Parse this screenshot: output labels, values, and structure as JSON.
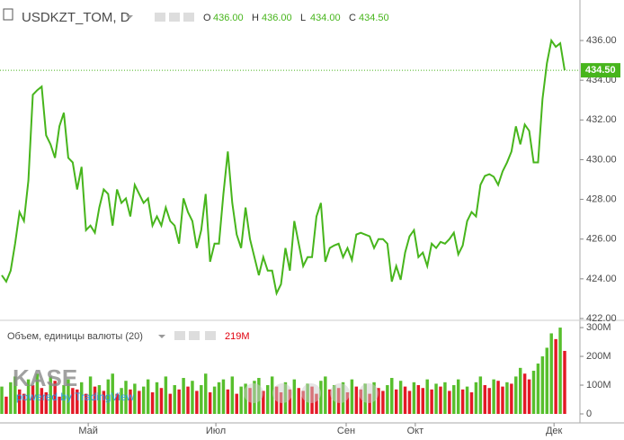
{
  "chart_data": [
    {
      "type": "line",
      "title": "USDKZT_TOM, D",
      "ohlc": [
        {
          "name": "O",
          "value": 436,
          "label": "436.00"
        },
        {
          "name": "H",
          "value": 436,
          "label": "436.00"
        },
        {
          "name": "L",
          "value": 434,
          "label": "434.00"
        },
        {
          "name": "C",
          "value": 434.5,
          "label": "434.50"
        }
      ],
      "series": [
        {
          "color": "#47b51c",
          "values": [
            424.18,
            423.86,
            424.41,
            425.77,
            427.36,
            426.91,
            428.95,
            433.27,
            433.5,
            433.68,
            431.23,
            430.77,
            430.09,
            431.68,
            432.36,
            430.09,
            429.86,
            428.5,
            429.64,
            426.45,
            426.68,
            426.32,
            427.59,
            428.5,
            428.27,
            426.68,
            428.5,
            427.82,
            428.05,
            427.14,
            428.73,
            428.27,
            427.82,
            428.05,
            426.68,
            427.14,
            426.68,
            427.59,
            426.91,
            426.68,
            425.77,
            428.05,
            427.36,
            426.91,
            425.55,
            426.45,
            428.27,
            424.86,
            425.77,
            425.77,
            428.27,
            430.41,
            427.82,
            426.23,
            425.55,
            427.59,
            426,
            425.09,
            424.18,
            425.09,
            424.41,
            424.41,
            423.27,
            423.73,
            425.55,
            424.41,
            426.91,
            425.77,
            424.64,
            425.09,
            425.09,
            427.14,
            427.82,
            424.86,
            425.55,
            425.68,
            425.77,
            425.09,
            425.55,
            424.95,
            426.23,
            426.32,
            426.23,
            426.14,
            425.55,
            426,
            426,
            425.77,
            423.86,
            424.64,
            423.95,
            425.32,
            426.14,
            426.45,
            425.09,
            425.32,
            424.64,
            425.77,
            425.55,
            425.86,
            425.77,
            426,
            426.32,
            425.23,
            425.68,
            426.91,
            427.36,
            427.14,
            428.73,
            429.18,
            429.27,
            429.14,
            428.73,
            429.41,
            429.86,
            430.41,
            431.68,
            430.77,
            431.77,
            431.45,
            429.86,
            429.86,
            433.05,
            434.86,
            436,
            435.68,
            435.86,
            434.5
          ]
        }
      ],
      "ylim": [
        422,
        438.04
      ],
      "yticks": [
        {
          "value": 422,
          "label": "422.00"
        },
        {
          "value": 424,
          "label": "424.00"
        },
        {
          "value": 426,
          "label": "426.00"
        },
        {
          "value": 428,
          "label": "428.00"
        },
        {
          "value": 430,
          "label": "430.00"
        },
        {
          "value": 432,
          "label": "432.00"
        },
        {
          "value": 434,
          "label": "434.00"
        },
        {
          "value": 436,
          "label": "436.00"
        }
      ],
      "xlim": [
        0,
        127
      ],
      "xticks": [
        {
          "value": 19.5,
          "label": "Май"
        },
        {
          "value": 48.3,
          "label": "Июл"
        },
        {
          "value": 77.7,
          "label": "Сен"
        },
        {
          "value": 93.3,
          "label": "Окт"
        },
        {
          "value": 124.6,
          "label": "Дек"
        }
      ],
      "grid": false
    },
    {
      "type": "bar",
      "title": "Объем, единицы валюты (20)",
      "last_value": {
        "value": 219,
        "label": "219M"
      },
      "up_color": "#45b816",
      "down_color": "#e0000e",
      "values": [
        95,
        60,
        110,
        130,
        85,
        70,
        120,
        100,
        140,
        90,
        75,
        130,
        115,
        60,
        100,
        120,
        90,
        85,
        110,
        70,
        130,
        95,
        100,
        80,
        120,
        140,
        70,
        90,
        115,
        85,
        105,
        80,
        95,
        120,
        75,
        110,
        90,
        130,
        70,
        100,
        85,
        125,
        95,
        115,
        80,
        100,
        140,
        75,
        95,
        110,
        120,
        85,
        130,
        70,
        95,
        105,
        90,
        115,
        125,
        80,
        100,
        130,
        95,
        75,
        110,
        85,
        120,
        90,
        80,
        105,
        95,
        70,
        115,
        130,
        85,
        100,
        90,
        110,
        75,
        120,
        95,
        85,
        105,
        70,
        110,
        90,
        80,
        100,
        125,
        85,
        115,
        95,
        80,
        110,
        100,
        90,
        120,
        85,
        105,
        95,
        110,
        80,
        100,
        120,
        85,
        95,
        75,
        110,
        130,
        100,
        90,
        120,
        115,
        95,
        110,
        105,
        130,
        160,
        140,
        120,
        150,
        175,
        200,
        230,
        280,
        260,
        300,
        219
      ],
      "ylim": [
        0,
        319
      ],
      "yticks": [
        0,
        {
          "value": 100,
          "label": "100M"
        },
        {
          "value": 200,
          "label": "200M"
        },
        {
          "value": 300,
          "label": "300M"
        }
      ]
    }
  ],
  "watermark": {
    "logo": "KASE",
    "text": "powered by TradingView"
  }
}
